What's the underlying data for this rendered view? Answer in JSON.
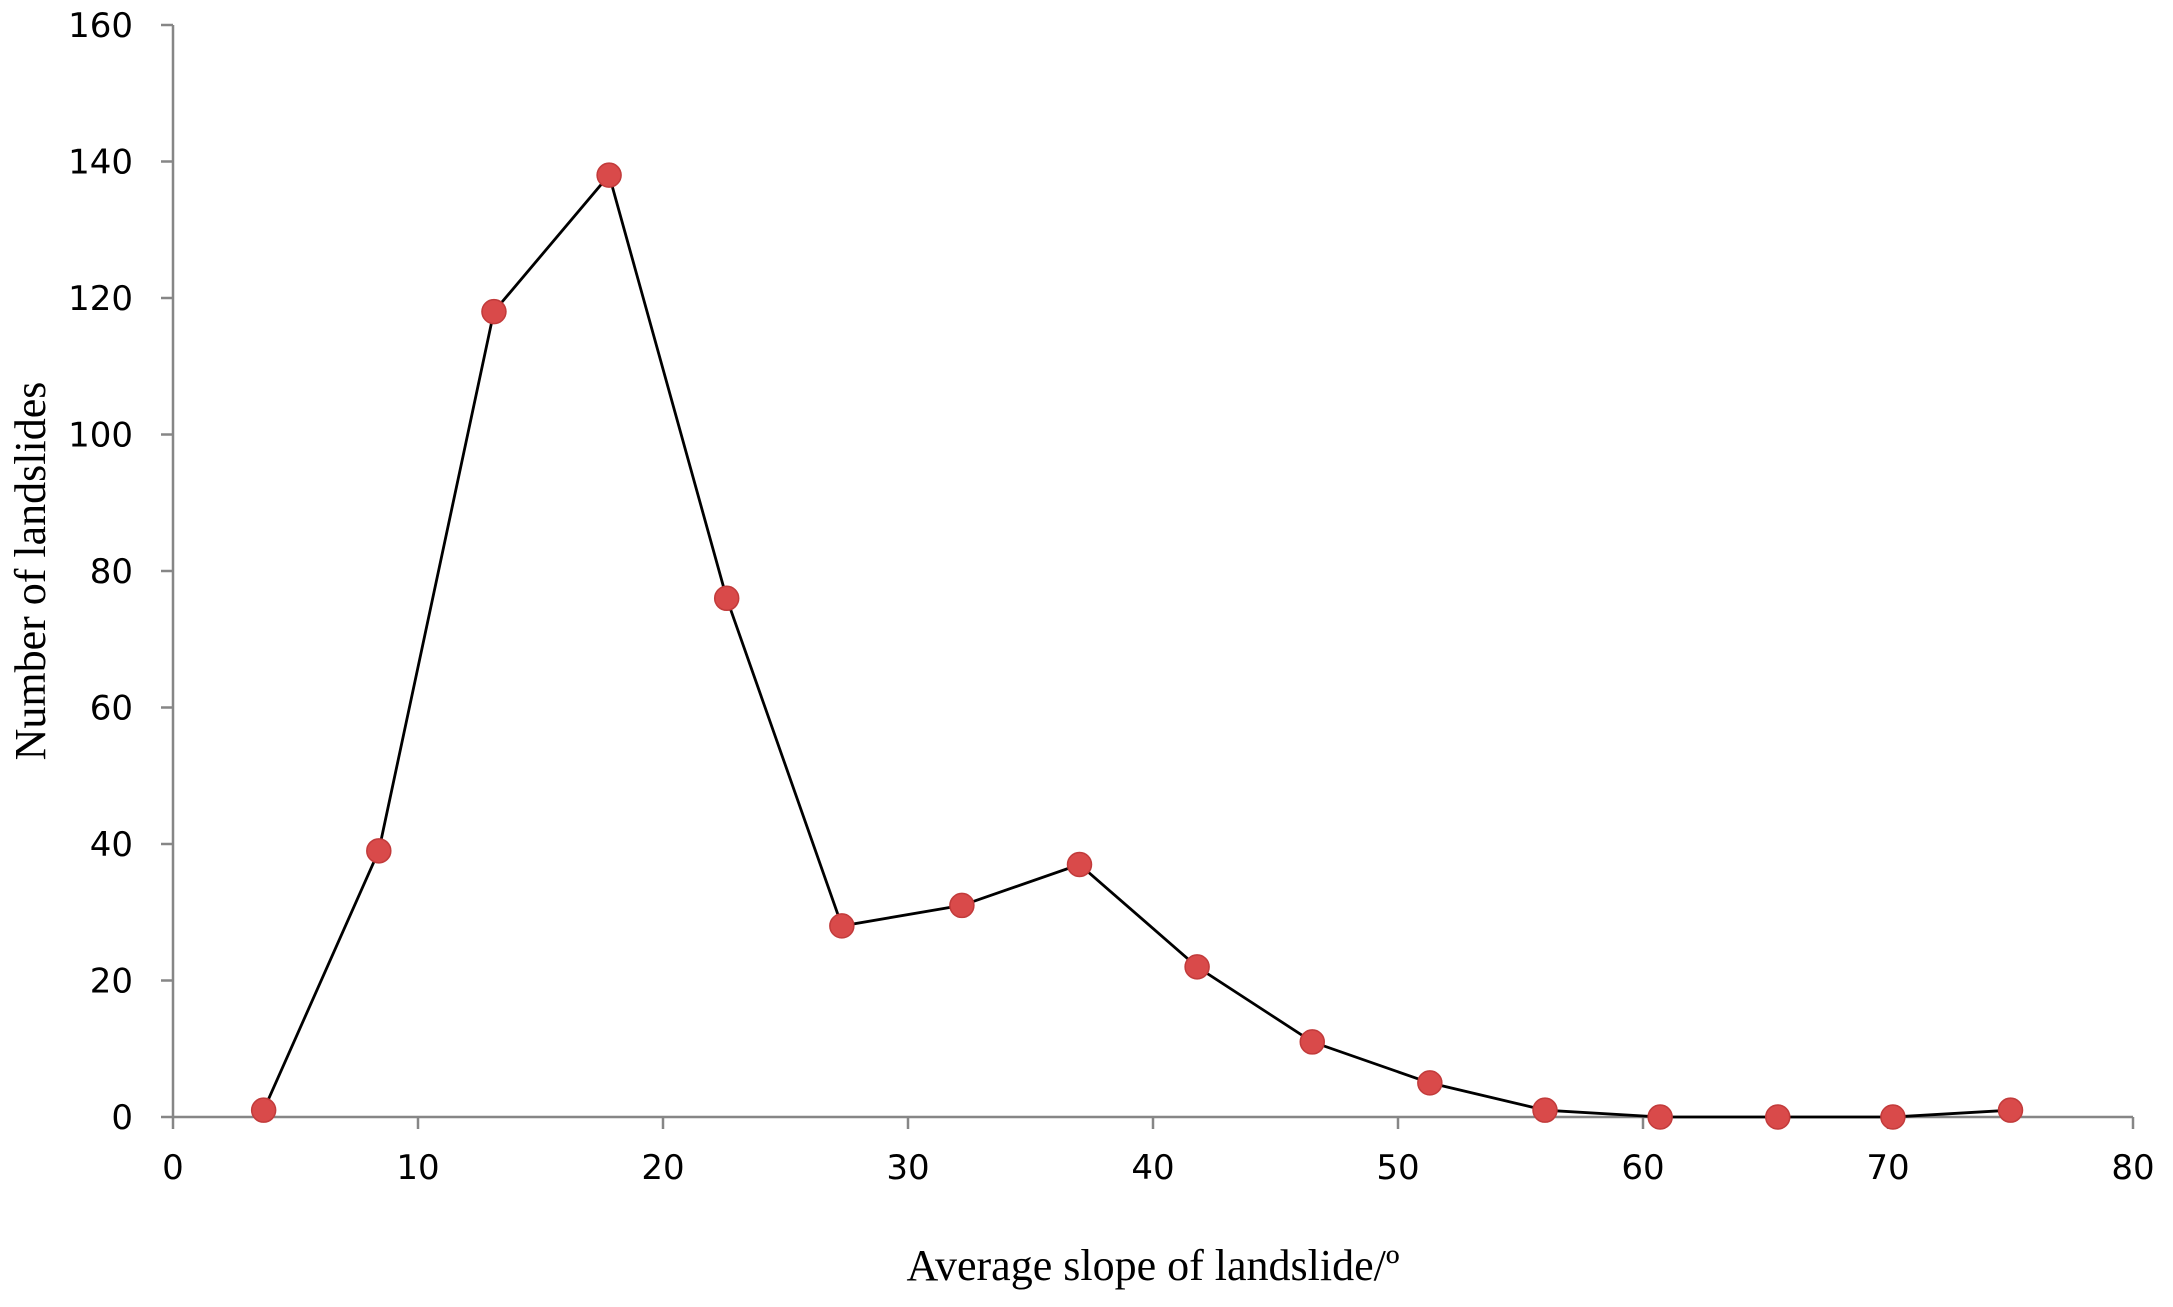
{
  "chart_data": {
    "type": "line",
    "title": "",
    "xlabel": "Average slope of landslide/º",
    "ylabel": "Number of landslides",
    "xlim": [
      0,
      80
    ],
    "ylim": [
      0,
      160
    ],
    "x_ticks": [
      0,
      10,
      20,
      30,
      40,
      50,
      60,
      70,
      80
    ],
    "y_ticks": [
      0,
      20,
      40,
      60,
      80,
      100,
      120,
      140,
      160
    ],
    "grid": false,
    "legend": "none",
    "series": [
      {
        "color": "#d94a4a",
        "line_color": "#000000",
        "x": [
          3.7,
          8.4,
          13.1,
          17.8,
          22.6,
          27.3,
          32.2,
          37.0,
          41.8,
          46.5,
          51.3,
          56.0,
          60.7,
          65.5,
          70.2,
          75.0
        ],
        "y": [
          1,
          39,
          118,
          138,
          76,
          28,
          31,
          37,
          22,
          11,
          5,
          1,
          0,
          0,
          0,
          1
        ]
      }
    ]
  }
}
